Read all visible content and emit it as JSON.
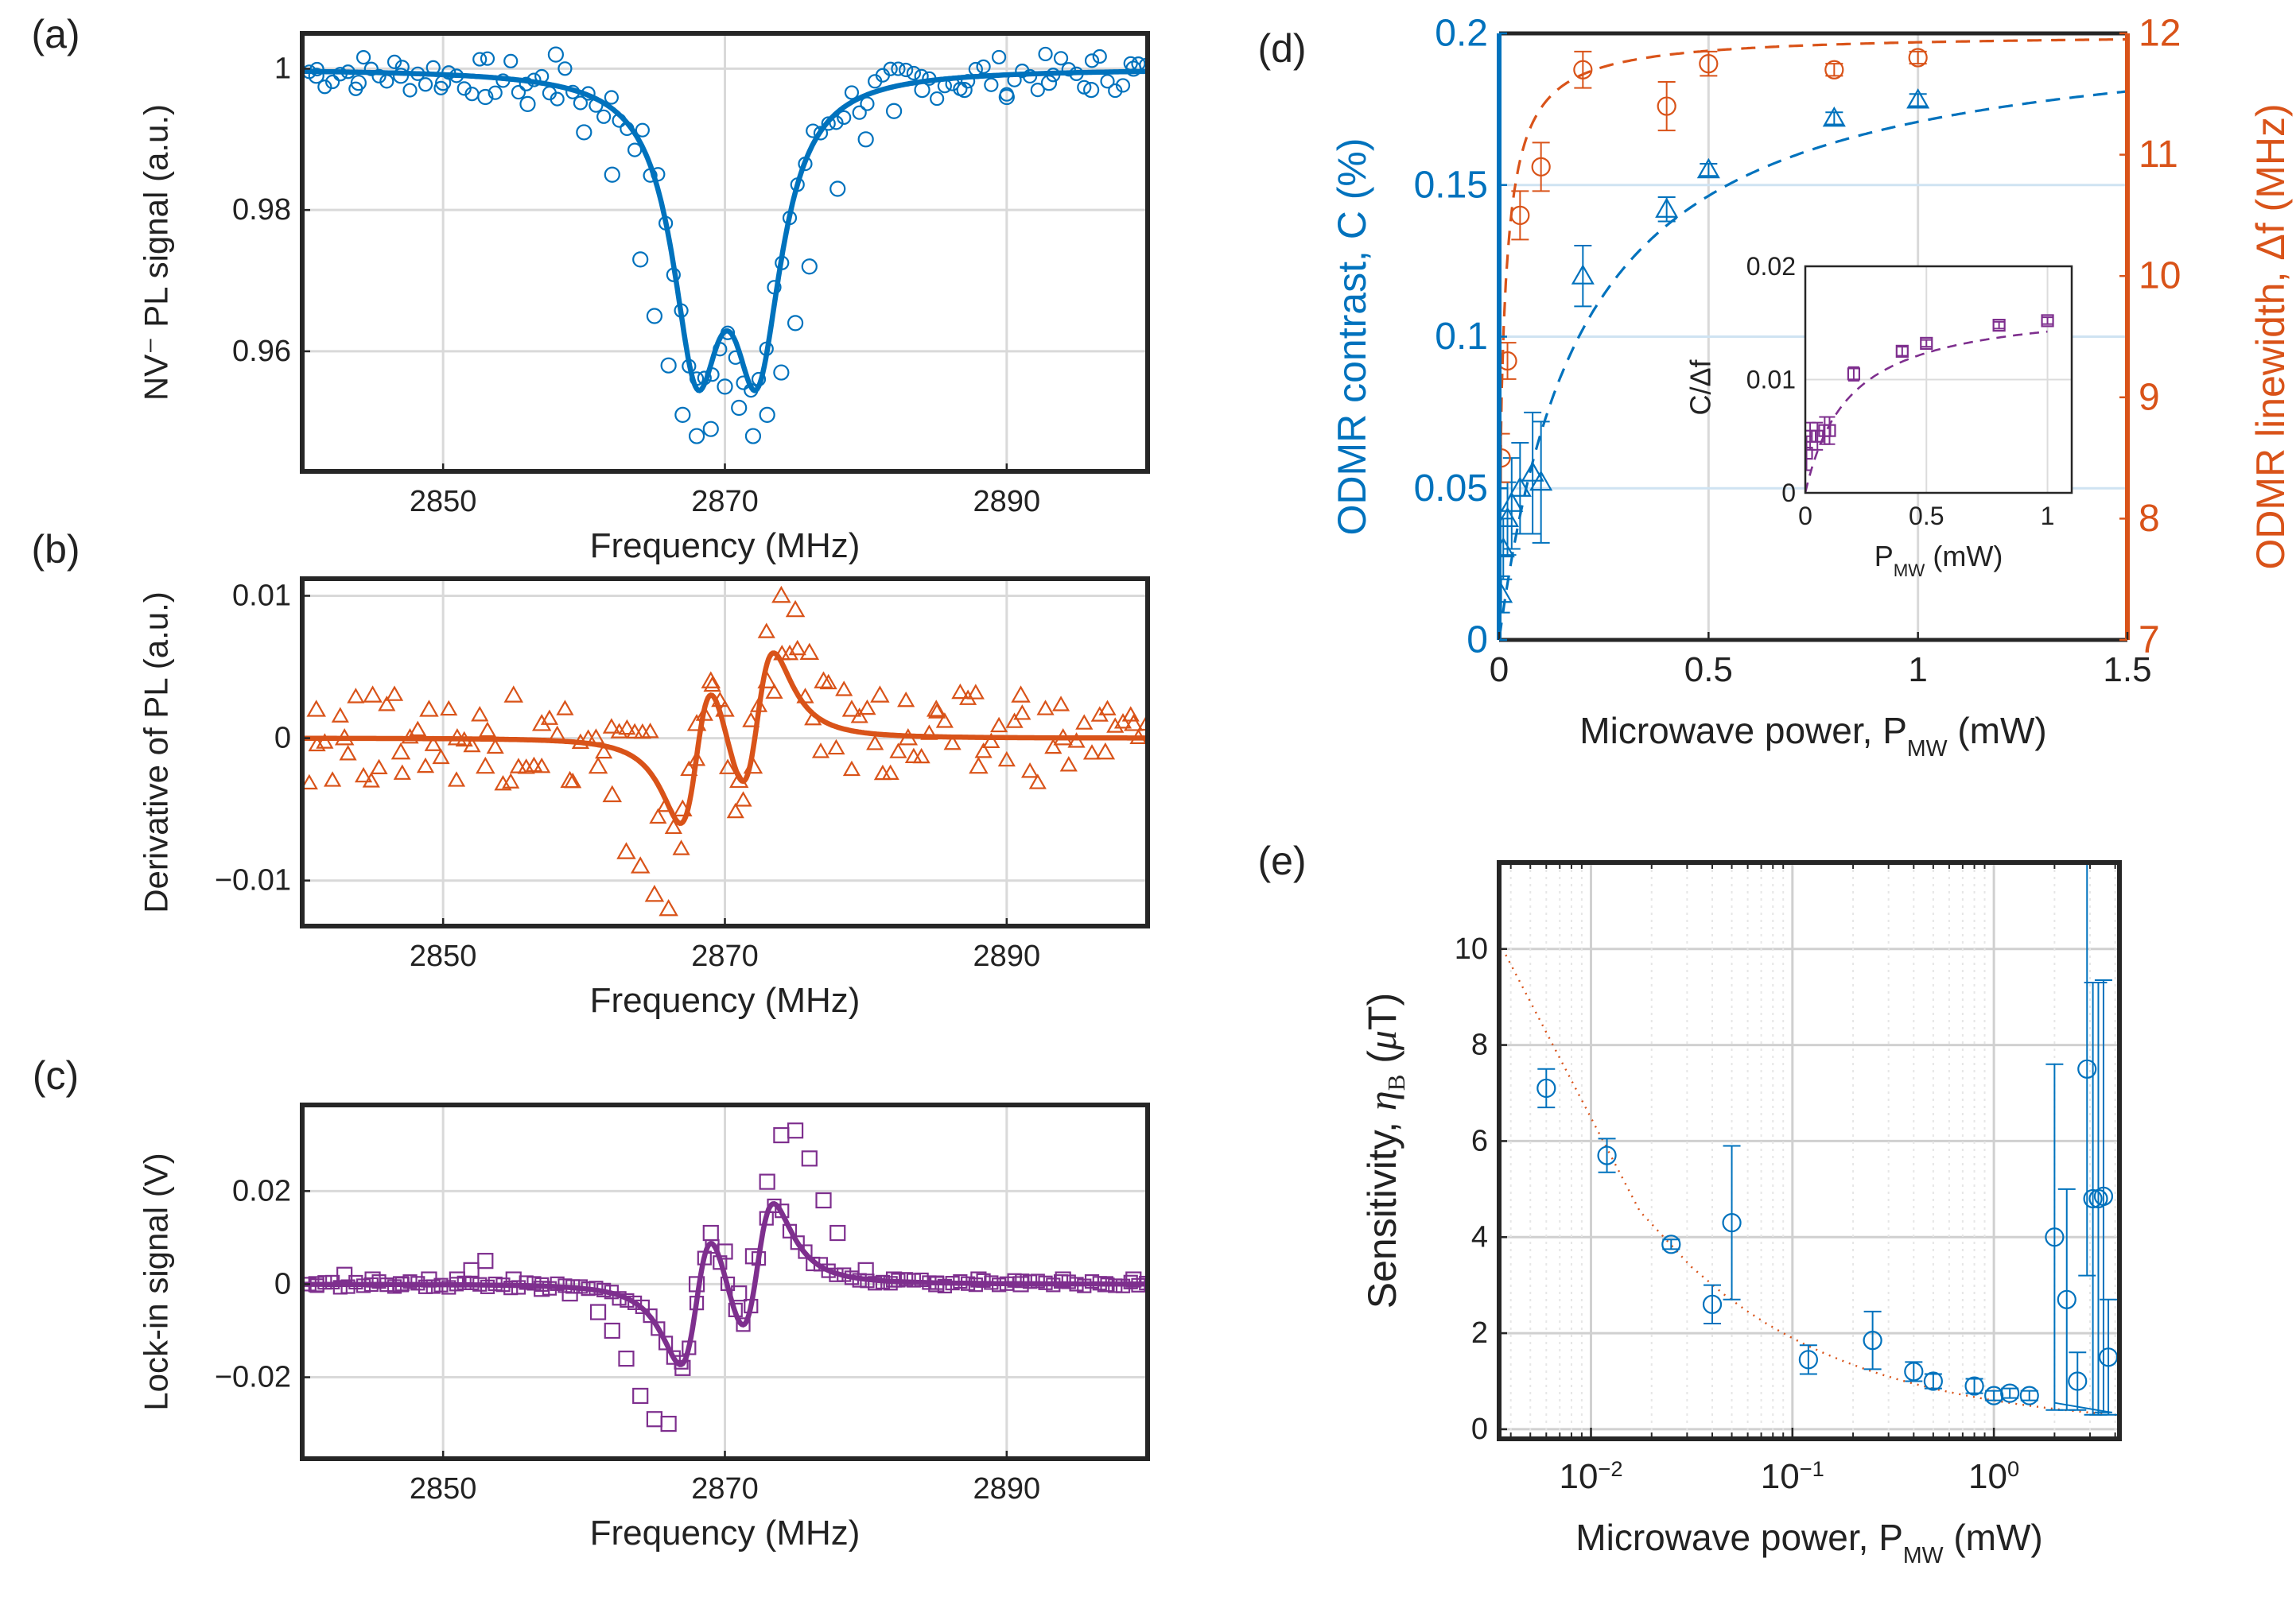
{
  "figure": {
    "panel_ids": [
      "a",
      "b",
      "c",
      "d",
      "e"
    ]
  },
  "chart_data": [
    {
      "id": "a",
      "panel_label": "(a)",
      "type": "scatter",
      "xlabel": "Frequency (MHz)",
      "ylabel": "NV⁻ PL signal (a.u.)",
      "xlim": [
        2840,
        2900
      ],
      "ylim": [
        0.943,
        1.005
      ],
      "xticks": [
        2850,
        2870,
        2890
      ],
      "xtick_labels": [
        "2850",
        "2870",
        "2890"
      ],
      "yticks": [
        0.96,
        0.98,
        1.0
      ],
      "ytick_labels": [
        "0.96",
        "0.98",
        "1"
      ],
      "grid": true,
      "color": "#0072BD",
      "marker": "circle",
      "model": {
        "kind": "lorentz_pair",
        "f1": 2868.0,
        "f2": 2872.3,
        "width": 4.2,
        "depth": 0.0475,
        "baseline": 1.0
      },
      "x": [
        2841,
        2844,
        2847,
        2850,
        2853,
        2856,
        2858,
        2860,
        2862,
        2864,
        2865,
        2866,
        2867,
        2868,
        2869,
        2870,
        2871,
        2872,
        2873,
        2874,
        2875,
        2876,
        2878,
        2880,
        2882,
        2884,
        2887,
        2890,
        2893,
        2896,
        2899
      ],
      "series": [
        {
          "name": "data",
          "values": [
            0.999,
            0.998,
            0.999,
            0.998,
            0.996,
            0.995,
            1.002,
            0.991,
            0.985,
            0.973,
            0.965,
            0.958,
            0.951,
            0.948,
            0.949,
            0.955,
            0.952,
            0.948,
            0.951,
            0.957,
            0.964,
            0.972,
            0.983,
            0.99,
            0.994,
            0.997,
            0.997,
            0.996,
            0.998,
            0.997,
            1.0
          ]
        },
        {
          "name": "fit",
          "values": []
        }
      ]
    },
    {
      "id": "b",
      "panel_label": "(b)",
      "type": "scatter",
      "xlabel": "Frequency (MHz)",
      "ylabel": "Derivative of PL (a.u.)",
      "xlim": [
        2840,
        2900
      ],
      "ylim": [
        -0.0132,
        0.0112
      ],
      "xticks": [
        2850,
        2870,
        2890
      ],
      "xtick_labels": [
        "2850",
        "2870",
        "2890"
      ],
      "yticks": [
        -0.01,
        0,
        0.01
      ],
      "ytick_labels": [
        "−0.01",
        "0",
        "0.01"
      ],
      "grid": true,
      "color": "#D95319",
      "marker": "triangle",
      "model": {
        "kind": "lorentz_pair_derivative",
        "f1": 2868.0,
        "f2": 2872.3,
        "width": 4.2,
        "depth": 0.0475,
        "scale": 0.45
      },
      "x": [
        2841,
        2843,
        2845,
        2847,
        2849,
        2851,
        2853,
        2855,
        2857,
        2859,
        2861,
        2862,
        2863,
        2864,
        2865,
        2866,
        2867,
        2868,
        2869,
        2870,
        2871,
        2872,
        2873,
        2874,
        2875,
        2876,
        2877,
        2879,
        2881,
        2883,
        2885,
        2888,
        2891,
        2894,
        2897,
        2899
      ],
      "series": [
        {
          "name": "data",
          "values": [
            0.002,
            0.0,
            0.003,
            -0.001,
            0.002,
            0.0,
            -0.002,
            0.003,
            0.001,
            -0.003,
            -0.002,
            -0.004,
            -0.008,
            -0.009,
            -0.011,
            -0.012,
            -0.005,
            0.001,
            0.004,
            0.002,
            -0.003,
            -0.002,
            0.004,
            0.01,
            0.009,
            0.006,
            0.004,
            0.002,
            0.003,
            0.0,
            0.002,
            -0.002,
            0.003,
            0.0,
            -0.001,
            0.001
          ]
        },
        {
          "name": "fit",
          "values": []
        }
      ]
    },
    {
      "id": "c",
      "panel_label": "(c)",
      "type": "scatter",
      "xlabel": "Frequency (MHz)",
      "ylabel": "Lock-in signal (V)",
      "xlim": [
        2840,
        2900
      ],
      "ylim": [
        -0.0375,
        0.0385
      ],
      "xticks": [
        2850,
        2870,
        2890
      ],
      "xtick_labels": [
        "2850",
        "2870",
        "2890"
      ],
      "yticks": [
        -0.02,
        0,
        0.02
      ],
      "ytick_labels": [
        "−0.02",
        "0",
        "0.02"
      ],
      "grid": true,
      "color": "#7E2F8E",
      "marker": "square",
      "model": {
        "kind": "lorentz_pair_derivative",
        "f1": 2868.0,
        "f2": 2872.3,
        "width": 4.2,
        "depth": 0.0475,
        "scale": 1.3
      },
      "x": [
        2841,
        2843,
        2845,
        2847,
        2849,
        2851,
        2852,
        2853,
        2855,
        2857,
        2859,
        2861,
        2862,
        2863,
        2864,
        2865,
        2866,
        2867,
        2868,
        2869,
        2870,
        2871,
        2872,
        2873,
        2874,
        2875,
        2876,
        2877,
        2878,
        2880,
        2882,
        2885,
        2888,
        2891,
        2894,
        2897,
        2899
      ],
      "series": [
        {
          "name": "data",
          "values": [
            0.0,
            0.002,
            0.001,
            0.0,
            0.001,
            0.001,
            0.003,
            0.005,
            0.001,
            -0.001,
            -0.002,
            -0.006,
            -0.01,
            -0.016,
            -0.024,
            -0.029,
            -0.03,
            -0.018,
            0.0,
            0.011,
            0.007,
            -0.002,
            0.006,
            0.022,
            0.032,
            0.033,
            0.027,
            0.018,
            0.011,
            0.003,
            0.001,
            0.0,
            0.001,
            0.0,
            0.001,
            0.0,
            0.001
          ]
        },
        {
          "name": "fit",
          "values": []
        }
      ]
    },
    {
      "id": "d",
      "panel_label": "(d)",
      "type": "scatter",
      "xlabel": "Microwave power, PMW (mW)",
      "xlim": [
        0,
        1.5
      ],
      "xticks": [
        0,
        0.5,
        1,
        1.5
      ],
      "xtick_labels": [
        "0",
        "0.5",
        "1",
        "1.5"
      ],
      "grid": true,
      "left_axis": {
        "label": "ODMR contrast, C (%)",
        "color": "#0072BD",
        "ylim": [
          0,
          0.2
        ],
        "yticks": [
          0,
          0.05,
          0.1,
          0.15,
          0.2
        ],
        "ytick_labels": [
          "0",
          "0.05",
          "0.1",
          "0.15",
          "0.2"
        ]
      },
      "right_axis": {
        "label": "ODMR linewidth, Δf (MHz)",
        "color": "#D95319",
        "ylim": [
          7,
          12
        ],
        "yticks": [
          7,
          8,
          9,
          10,
          11,
          12
        ],
        "ytick_labels": [
          "7",
          "8",
          "9",
          "10",
          "11",
          "12"
        ]
      },
      "series": [
        {
          "name": "ODMR contrast",
          "axis": "left",
          "marker": "triangle",
          "x": [
            0.005,
            0.01,
            0.02,
            0.03,
            0.05,
            0.08,
            0.1,
            0.2,
            0.4,
            0.5,
            0.8,
            1.0
          ],
          "values": [
            0.015,
            0.03,
            0.04,
            0.045,
            0.05,
            0.055,
            0.052,
            0.12,
            0.142,
            0.155,
            0.172,
            0.178
          ],
          "errors": [
            0.006,
            0.01,
            0.012,
            0.015,
            0.015,
            0.02,
            0.02,
            0.01,
            0.004,
            0.002,
            0.002,
            0.002
          ],
          "fit": {
            "kind": "saturation",
            "amp": 0.205,
            "p_sat": 0.2
          }
        },
        {
          "name": "ODMR linewidth",
          "axis": "right",
          "marker": "circle",
          "x": [
            0.005,
            0.02,
            0.05,
            0.1,
            0.2,
            0.4,
            0.5,
            0.8,
            1.0
          ],
          "values": [
            8.5,
            9.3,
            10.5,
            10.9,
            11.7,
            11.4,
            11.75,
            11.7,
            11.8
          ],
          "errors": [
            0.2,
            0.15,
            0.2,
            0.2,
            0.15,
            0.2,
            0.1,
            0.05,
            0.05
          ],
          "fit": {
            "kind": "saturation_offset",
            "base": 7.0,
            "amp": 5.0,
            "p_sat": 0.03,
            "shape": 0.5
          }
        }
      ],
      "inset": {
        "xlabel": "PMW (mW)",
        "ylabel": "C/Δf",
        "xlim": [
          0,
          1.1
        ],
        "ylim": [
          0,
          0.02
        ],
        "xticks": [
          0,
          0.5,
          1
        ],
        "xtick_labels": [
          "0",
          "0.5",
          "1"
        ],
        "yticks": [
          0,
          0.01,
          0.02
        ],
        "ytick_labels": [
          "0",
          "0.01",
          "0.02"
        ],
        "color": "#7E2F8E",
        "marker": "square",
        "x": [
          0.005,
          0.02,
          0.05,
          0.08,
          0.1,
          0.2,
          0.4,
          0.5,
          0.8,
          1.0
        ],
        "values": [
          0.0035,
          0.005,
          0.005,
          0.0055,
          0.0055,
          0.0105,
          0.0125,
          0.0132,
          0.0148,
          0.0152
        ],
        "errors": [
          0.0015,
          0.0012,
          0.0012,
          0.0012,
          0.0012,
          0.0006,
          0.0004,
          0.0003,
          0.0003,
          0.0003
        ],
        "fit": {
          "kind": "saturation",
          "amp": 0.0168,
          "p_sat": 0.18
        }
      }
    },
    {
      "id": "e",
      "panel_label": "(e)",
      "type": "scatter",
      "xlabel": "Microwave power, PMW (mW)",
      "ylabel": "Sensitivity, ηB (μT)",
      "xscale": "log",
      "xlim": [
        0.0035,
        4.2
      ],
      "ylim": [
        -0.2,
        11.8
      ],
      "xticks": [
        0.01,
        0.1,
        1
      ],
      "xtick_labels": [
        "10^-2",
        "10^-1",
        "10^0"
      ],
      "yticks": [
        0,
        2,
        4,
        6,
        8,
        10
      ],
      "ytick_labels": [
        "0",
        "2",
        "4",
        "6",
        "8",
        "10"
      ],
      "grid": true,
      "color": "#0072BD",
      "marker": "circle",
      "series": [
        {
          "name": "data",
          "x": [
            0.006,
            0.012,
            0.025,
            0.04,
            0.05,
            0.12,
            0.25,
            0.4,
            0.5,
            0.8,
            1.0,
            1.2,
            1.5,
            2.0,
            2.3,
            2.6,
            2.9,
            3.1,
            3.3,
            3.5,
            3.7
          ],
          "values": [
            7.1,
            5.7,
            3.85,
            2.6,
            4.3,
            1.45,
            1.85,
            1.2,
            1.0,
            0.9,
            0.7,
            0.75,
            0.7,
            4.0,
            2.7,
            1.0,
            7.5,
            4.8,
            4.8,
            4.85,
            1.5
          ],
          "errors": [
            0.4,
            0.35,
            0.1,
            0.4,
            1.6,
            0.3,
            0.6,
            0.2,
            0.15,
            0.15,
            0.1,
            0.1,
            0.1,
            3.6,
            2.3,
            0.6,
            4.3,
            4.5,
            4.5,
            4.5,
            1.2
          ]
        },
        {
          "name": "fit",
          "fit": {
            "kind": "power_law",
            "coef": 0.6,
            "exp": -0.5
          }
        }
      ]
    }
  ]
}
